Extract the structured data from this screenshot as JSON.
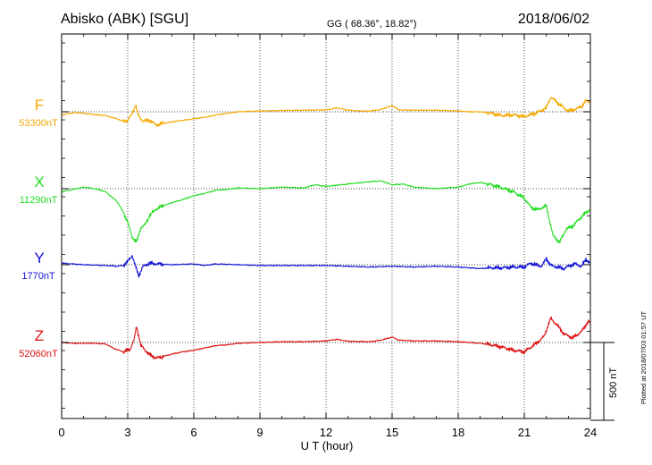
{
  "header": {
    "station": "Abisko (ABK)  [SGU]",
    "coords": "GG ( 68.36°,  18.82°)",
    "date": "2018/06/02"
  },
  "footer": {
    "xlabel": "U T (hour)",
    "scale_label": "500 nT",
    "plotted_note": "Plotted at 2018/07/03 01:57 UT"
  },
  "chart_data": {
    "type": "line",
    "xlabel": "U T (hour)",
    "xlim": [
      0,
      24
    ],
    "xticks": [
      "0",
      "3",
      "6",
      "9",
      "12",
      "15",
      "18",
      "21",
      "24"
    ],
    "ylabel": "",
    "scale_bar_nT": 500,
    "grid": true,
    "series": [
      {
        "name": "F",
        "baseline": "53300nT",
        "color": "#f5a800",
        "points": [
          [
            0,
            -20
          ],
          [
            0.3,
            -12
          ],
          [
            0.6,
            -5
          ],
          [
            1,
            -10
          ],
          [
            1.5,
            -18
          ],
          [
            2,
            -25
          ],
          [
            2.5,
            -45
          ],
          [
            2.8,
            -60
          ],
          [
            3,
            -55
          ],
          [
            3.2,
            -15
          ],
          [
            3.35,
            45
          ],
          [
            3.5,
            -30
          ],
          [
            3.7,
            -60
          ],
          [
            4,
            -55
          ],
          [
            4.3,
            -85
          ],
          [
            4.6,
            -75
          ],
          [
            5,
            -65
          ],
          [
            5.5,
            -55
          ],
          [
            6,
            -45
          ],
          [
            6.5,
            -35
          ],
          [
            7,
            -20
          ],
          [
            7.5,
            -10
          ],
          [
            8,
            0
          ],
          [
            9,
            5
          ],
          [
            10,
            8
          ],
          [
            11,
            10
          ],
          [
            12,
            12
          ],
          [
            12.5,
            25
          ],
          [
            13,
            10
          ],
          [
            13.5,
            5
          ],
          [
            14,
            5
          ],
          [
            14.5,
            15
          ],
          [
            15,
            40
          ],
          [
            15.3,
            12
          ],
          [
            16,
            10
          ],
          [
            17,
            10
          ],
          [
            18,
            5
          ],
          [
            18.5,
            0
          ],
          [
            19,
            0
          ],
          [
            19.5,
            -10
          ],
          [
            20,
            -25
          ],
          [
            20.5,
            -20
          ],
          [
            21,
            -30
          ],
          [
            21.5,
            -10
          ],
          [
            21.8,
            10
          ],
          [
            22,
            25
          ],
          [
            22.2,
            95
          ],
          [
            22.5,
            60
          ],
          [
            22.8,
            25
          ],
          [
            23,
            5
          ],
          [
            23.3,
            15
          ],
          [
            23.6,
            35
          ],
          [
            23.8,
            70
          ],
          [
            24,
            65
          ]
        ]
      },
      {
        "name": "X",
        "baseline": "11290nT",
        "color": "#22dd22",
        "points": [
          [
            0,
            -20
          ],
          [
            0.5,
            -5
          ],
          [
            1,
            10
          ],
          [
            1.5,
            0
          ],
          [
            2,
            -20
          ],
          [
            2.5,
            -80
          ],
          [
            2.8,
            -150
          ],
          [
            3,
            -215
          ],
          [
            3.2,
            -310
          ],
          [
            3.4,
            -345
          ],
          [
            3.6,
            -250
          ],
          [
            3.8,
            -230
          ],
          [
            4,
            -170
          ],
          [
            4.3,
            -130
          ],
          [
            4.6,
            -110
          ],
          [
            5,
            -90
          ],
          [
            5.5,
            -70
          ],
          [
            6,
            -45
          ],
          [
            6.5,
            -30
          ],
          [
            7,
            -10
          ],
          [
            7.5,
            -5
          ],
          [
            8,
            5
          ],
          [
            9,
            0
          ],
          [
            10,
            10
          ],
          [
            11,
            5
          ],
          [
            11.5,
            25
          ],
          [
            12,
            15
          ],
          [
            13,
            30
          ],
          [
            14,
            45
          ],
          [
            14.5,
            50
          ],
          [
            15,
            25
          ],
          [
            15.5,
            30
          ],
          [
            16,
            10
          ],
          [
            17,
            0
          ],
          [
            18,
            10
          ],
          [
            18.5,
            30
          ],
          [
            19,
            40
          ],
          [
            19.5,
            25
          ],
          [
            20,
            5
          ],
          [
            20.5,
            -20
          ],
          [
            21,
            -60
          ],
          [
            21.3,
            -120
          ],
          [
            21.6,
            -135
          ],
          [
            22,
            -110
          ],
          [
            22.3,
            -300
          ],
          [
            22.6,
            -345
          ],
          [
            22.9,
            -260
          ],
          [
            23.2,
            -240
          ],
          [
            23.6,
            -180
          ],
          [
            24,
            -130
          ]
        ]
      },
      {
        "name": "Y",
        "baseline": "1770nT",
        "color": "#1212d8",
        "points": [
          [
            0,
            10
          ],
          [
            0.5,
            5
          ],
          [
            1,
            0
          ],
          [
            2,
            -5
          ],
          [
            2.5,
            -10
          ],
          [
            2.8,
            -5
          ],
          [
            3,
            20
          ],
          [
            3.2,
            60
          ],
          [
            3.35,
            -10
          ],
          [
            3.5,
            -70
          ],
          [
            3.7,
            -10
          ],
          [
            4,
            10
          ],
          [
            4.3,
            5
          ],
          [
            5,
            0
          ],
          [
            6,
            5
          ],
          [
            6.5,
            -5
          ],
          [
            7,
            5
          ],
          [
            8,
            0
          ],
          [
            9,
            -5
          ],
          [
            10,
            -5
          ],
          [
            11,
            -5
          ],
          [
            12,
            -5
          ],
          [
            13,
            -10
          ],
          [
            14,
            -15
          ],
          [
            15,
            -10
          ],
          [
            16,
            -15
          ],
          [
            17,
            -10
          ],
          [
            18,
            -15
          ],
          [
            18.5,
            -20
          ],
          [
            19,
            -25
          ],
          [
            19.5,
            -20
          ],
          [
            20,
            -20
          ],
          [
            20.5,
            -15
          ],
          [
            21,
            -15
          ],
          [
            21.3,
            10
          ],
          [
            21.5,
            0
          ],
          [
            21.8,
            -10
          ],
          [
            22,
            40
          ],
          [
            22.2,
            -5
          ],
          [
            22.5,
            -15
          ],
          [
            22.8,
            -25
          ],
          [
            23,
            -10
          ],
          [
            23.3,
            5
          ],
          [
            23.6,
            -10
          ],
          [
            23.8,
            35
          ],
          [
            24,
            10
          ]
        ]
      },
      {
        "name": "Z",
        "baseline": "52060nT",
        "color": "#dd1111",
        "points": [
          [
            0,
            0
          ],
          [
            0.5,
            -5
          ],
          [
            1,
            -5
          ],
          [
            1.5,
            -5
          ],
          [
            2,
            -10
          ],
          [
            2.4,
            -40
          ],
          [
            2.8,
            -60
          ],
          [
            3.1,
            -45
          ],
          [
            3.3,
            20
          ],
          [
            3.4,
            105
          ],
          [
            3.6,
            -20
          ],
          [
            4,
            -80
          ],
          [
            4.3,
            -100
          ],
          [
            4.6,
            -90
          ],
          [
            5,
            -75
          ],
          [
            5.5,
            -60
          ],
          [
            6,
            -50
          ],
          [
            6.5,
            -35
          ],
          [
            7,
            -20
          ],
          [
            7.5,
            -15
          ],
          [
            8,
            -5
          ],
          [
            9,
            0
          ],
          [
            10,
            5
          ],
          [
            11,
            5
          ],
          [
            12,
            10
          ],
          [
            12.5,
            20
          ],
          [
            13,
            8
          ],
          [
            14,
            5
          ],
          [
            14.5,
            15
          ],
          [
            15,
            35
          ],
          [
            15.3,
            15
          ],
          [
            16,
            10
          ],
          [
            17,
            10
          ],
          [
            18,
            5
          ],
          [
            19,
            -5
          ],
          [
            19.5,
            -15
          ],
          [
            20,
            -30
          ],
          [
            20.5,
            -50
          ],
          [
            21,
            -60
          ],
          [
            21.3,
            -30
          ],
          [
            21.6,
            0
          ],
          [
            21.9,
            40
          ],
          [
            22.2,
            155
          ],
          [
            22.5,
            110
          ],
          [
            22.8,
            55
          ],
          [
            23.2,
            30
          ],
          [
            23.6,
            70
          ],
          [
            23.9,
            135
          ],
          [
            24,
            125
          ]
        ]
      }
    ]
  }
}
